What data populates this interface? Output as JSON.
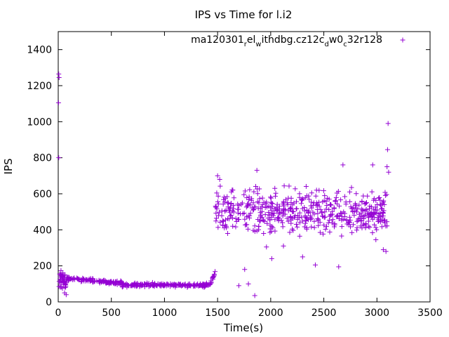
{
  "chart_data": {
    "type": "scatter",
    "title": "IPS vs Time for l.i2",
    "xlabel": "Time(s)",
    "ylabel": "IPS",
    "xlim": [
      0,
      3500
    ],
    "ylim": [
      0,
      1500
    ],
    "xticks": [
      "0",
      "500",
      "1000",
      "1500",
      "2000",
      "2500",
      "3000",
      "3500"
    ],
    "yticks": [
      "0",
      "200",
      "400",
      "600",
      "800",
      "1000",
      "1200",
      "1400"
    ],
    "grid": false,
    "legend_position": "top-right",
    "legend": {
      "parts": [
        {
          "text": "ma120301",
          "sub": false
        },
        {
          "text": "r",
          "sub": true
        },
        {
          "text": "el",
          "sub": false
        },
        {
          "text": "w",
          "sub": true
        },
        {
          "text": "ithdbg.cz12c",
          "sub": false
        },
        {
          "text": "d",
          "sub": true
        },
        {
          "text": "w0",
          "sub": false
        },
        {
          "text": "c",
          "sub": true
        },
        {
          "text": "32r128",
          "sub": false
        }
      ]
    },
    "series": [
      {
        "color": "#9400d3",
        "marker": "plus",
        "segments": [
          {
            "x_start": 0,
            "x_end": 80,
            "y_mean": 120,
            "y_spread": 45,
            "count": 45
          },
          {
            "x_start": 80,
            "x_end": 600,
            "y_mean": 112,
            "y_spread": 14,
            "count": 120
          },
          {
            "x_start": 600,
            "x_end": 1420,
            "y_mean": 94,
            "y_spread": 10,
            "count": 190
          },
          {
            "x_start": 1420,
            "x_end": 1480,
            "y_mean": 120,
            "y_spread": 25,
            "count": 15
          },
          {
            "x_start": 1480,
            "x_end": 3100,
            "y_mean": 500,
            "y_spread": 110,
            "count": 520
          }
        ],
        "points": [
          {
            "x": 5,
            "y": 1265
          },
          {
            "x": 8,
            "y": 1245
          },
          {
            "x": 3,
            "y": 1105
          },
          {
            "x": 5,
            "y": 800
          },
          {
            "x": 40,
            "y": 75
          },
          {
            "x": 60,
            "y": 50
          },
          {
            "x": 75,
            "y": 40
          },
          {
            "x": 1500,
            "y": 700
          },
          {
            "x": 1520,
            "y": 680
          },
          {
            "x": 1700,
            "y": 90
          },
          {
            "x": 1790,
            "y": 100
          },
          {
            "x": 1755,
            "y": 180
          },
          {
            "x": 1850,
            "y": 35
          },
          {
            "x": 1870,
            "y": 730
          },
          {
            "x": 1960,
            "y": 305
          },
          {
            "x": 2010,
            "y": 240
          },
          {
            "x": 2120,
            "y": 310
          },
          {
            "x": 2300,
            "y": 250
          },
          {
            "x": 2420,
            "y": 205
          },
          {
            "x": 2640,
            "y": 195
          },
          {
            "x": 2680,
            "y": 760
          },
          {
            "x": 2960,
            "y": 760
          },
          {
            "x": 2990,
            "y": 345
          },
          {
            "x": 3060,
            "y": 290
          },
          {
            "x": 3085,
            "y": 280
          },
          {
            "x": 3095,
            "y": 750
          },
          {
            "x": 3100,
            "y": 845
          },
          {
            "x": 3105,
            "y": 990
          },
          {
            "x": 3110,
            "y": 720
          }
        ]
      }
    ]
  }
}
